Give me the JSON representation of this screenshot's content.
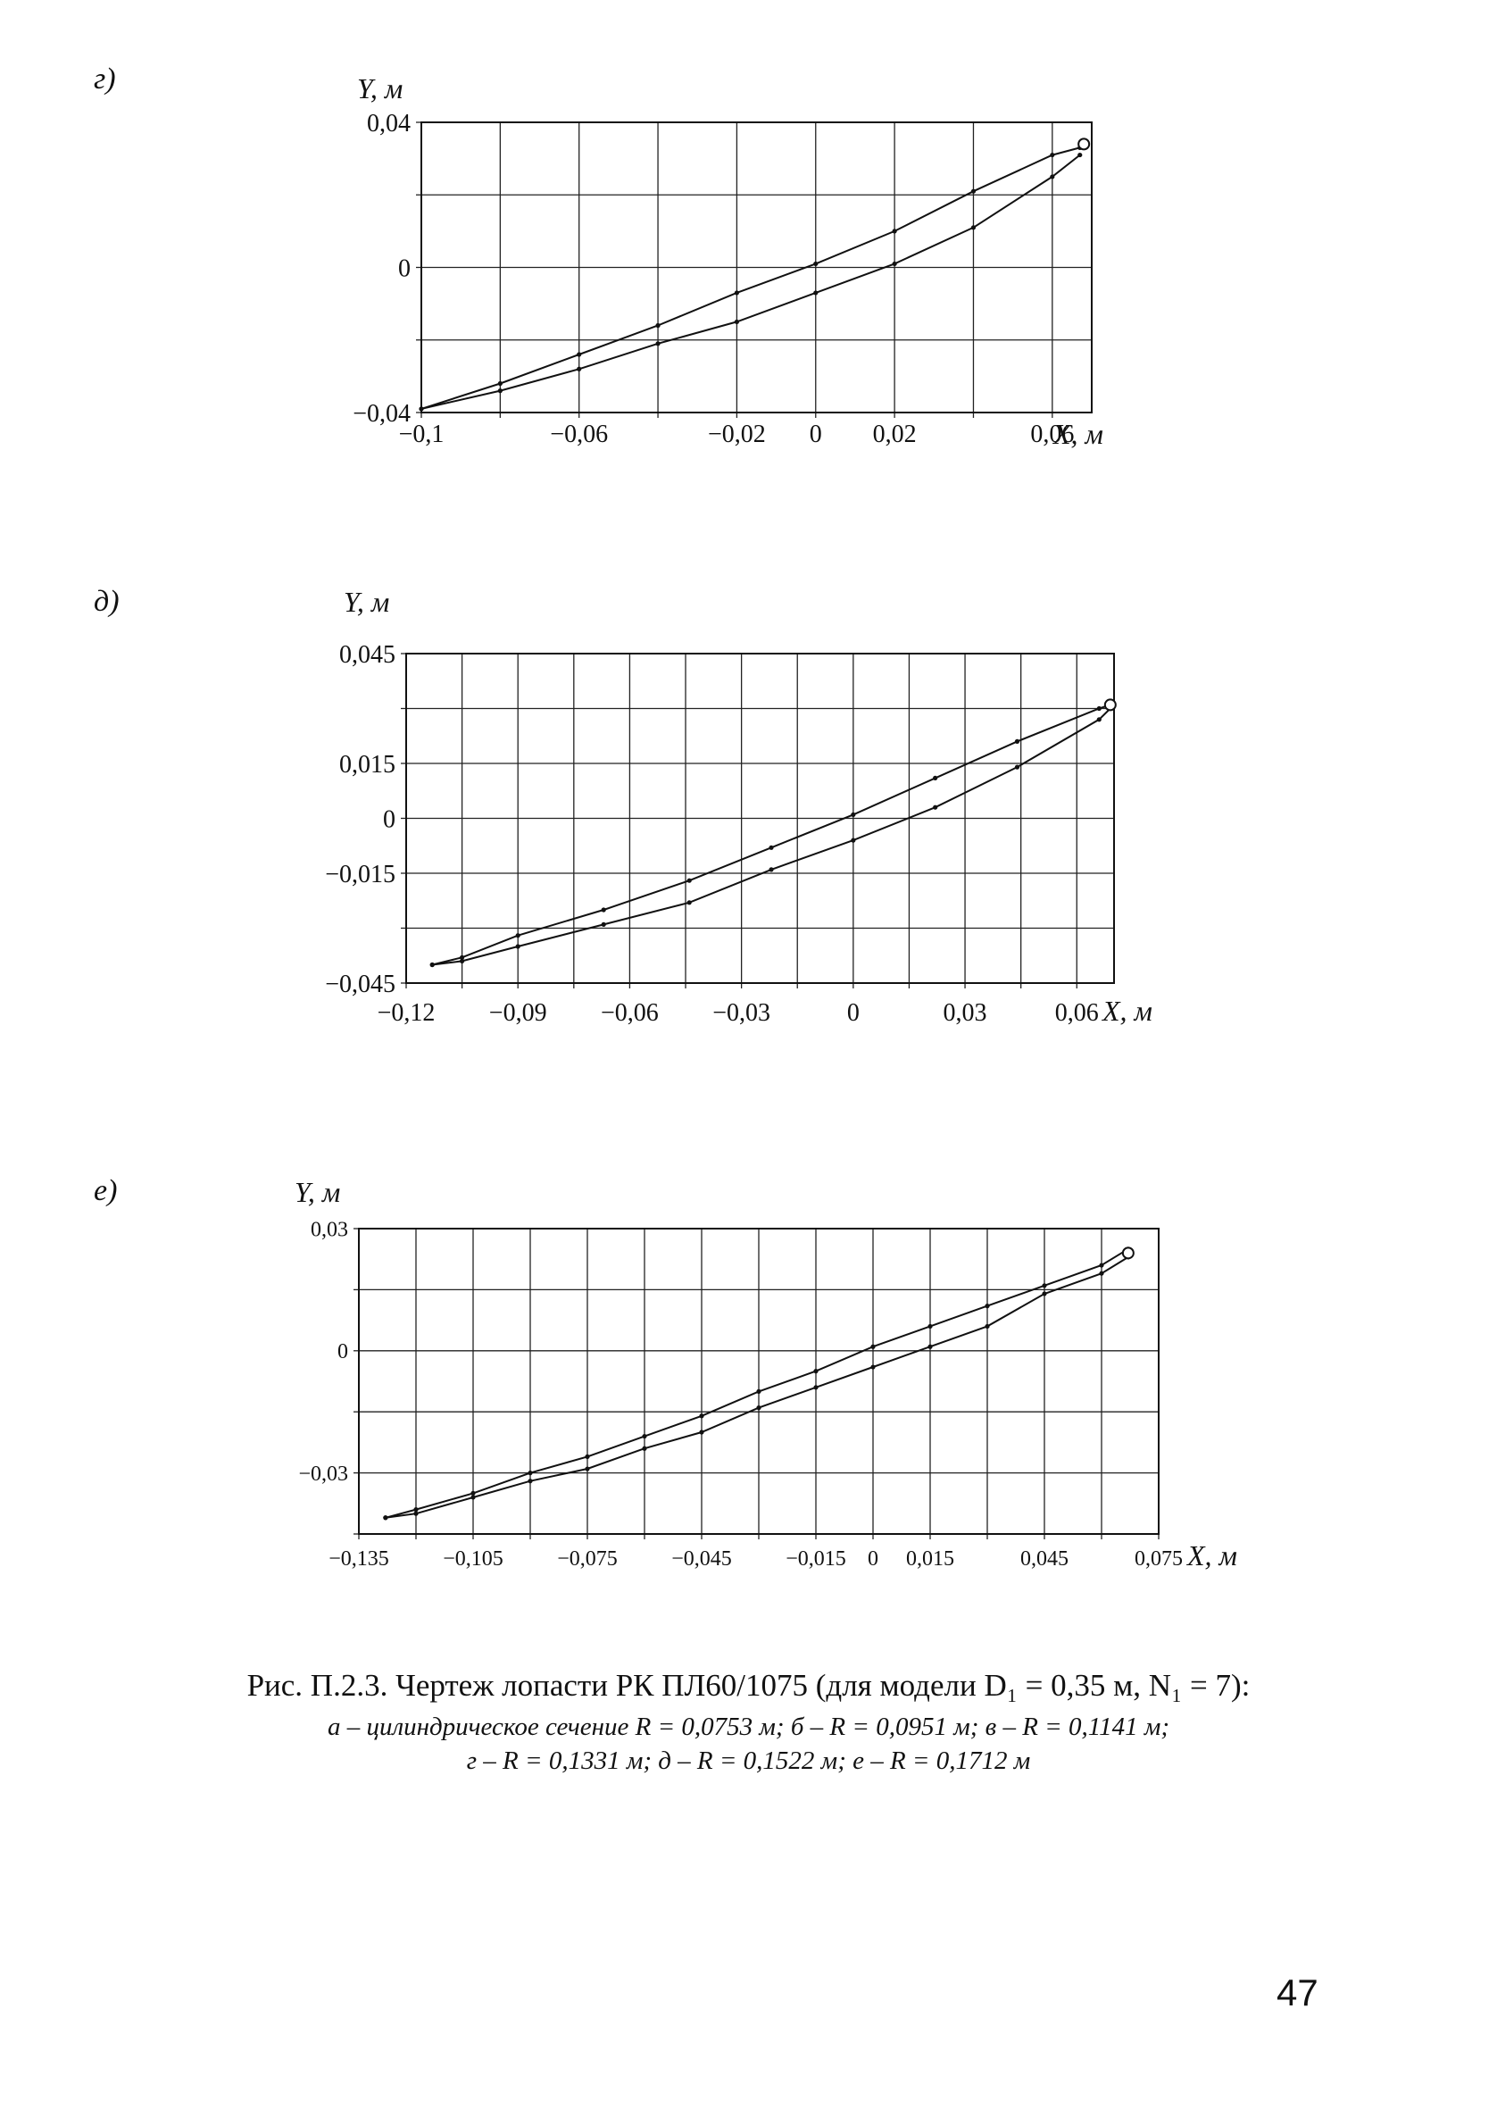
{
  "panels": [
    {
      "label": "г)"
    },
    {
      "label": "д)"
    },
    {
      "label": "е)"
    }
  ],
  "chart_data": [
    {
      "type": "line",
      "ylabel": "Y, м",
      "xlabel": "X, м",
      "xlim": [
        -0.1,
        0.07
      ],
      "ylim": [
        -0.04,
        0.04
      ],
      "grid": true,
      "xticks": [
        -0.1,
        -0.08,
        -0.06,
        -0.04,
        -0.02,
        0,
        0.02,
        0.04,
        0.06
      ],
      "xtick_labels": [
        "−0,1",
        "",
        "−0,06",
        "",
        "−0,02",
        "0",
        "0,02",
        "",
        "0,06"
      ],
      "yticks": [
        -0.04,
        -0.02,
        0,
        0.02,
        0.04
      ],
      "ytick_labels": [
        "−0,04",
        "",
        "0",
        "",
        "0,04"
      ],
      "series": [
        {
          "x": [
            -0.1,
            -0.08,
            -0.06,
            -0.04,
            -0.02,
            0,
            0.02,
            0.04,
            0.06,
            0.067
          ],
          "y": [
            -0.039,
            -0.032,
            -0.024,
            -0.016,
            -0.007,
            0.001,
            0.01,
            0.021,
            0.031,
            0.033
          ]
        },
        {
          "x": [
            -0.1,
            -0.08,
            -0.06,
            -0.04,
            -0.02,
            0,
            0.02,
            0.04,
            0.06,
            0.067
          ],
          "y": [
            -0.039,
            -0.034,
            -0.028,
            -0.021,
            -0.015,
            -0.007,
            0.001,
            0.011,
            0.025,
            0.031
          ]
        }
      ],
      "end_marker": {
        "x": 0.068,
        "y": 0.034
      }
    },
    {
      "type": "line",
      "ylabel": "Y, м",
      "xlabel": "X, м",
      "xlim": [
        -0.12,
        0.07
      ],
      "ylim": [
        -0.045,
        0.045
      ],
      "grid": true,
      "xticks": [
        -0.12,
        -0.105,
        -0.09,
        -0.075,
        -0.06,
        -0.045,
        -0.03,
        -0.015,
        0,
        0.015,
        0.03,
        0.045,
        0.06
      ],
      "xtick_labels": [
        "−0,12",
        "",
        "−0,09",
        "",
        "−0,06",
        "",
        "−0,03",
        "",
        "0",
        "",
        "0,03",
        "",
        "0,06"
      ],
      "yticks": [
        -0.045,
        -0.03,
        -0.015,
        0,
        0.015,
        0.03,
        0.045
      ],
      "ytick_labels": [
        "−0,045",
        "",
        "−0,015",
        "0",
        "0,015",
        "",
        "0,045"
      ],
      "series": [
        {
          "x": [
            -0.113,
            -0.105,
            -0.09,
            -0.067,
            -0.044,
            -0.022,
            0,
            0.022,
            0.044,
            0.066,
            0.069
          ],
          "y": [
            -0.04,
            -0.038,
            -0.032,
            -0.025,
            -0.017,
            -0.008,
            0.001,
            0.011,
            0.021,
            0.03,
            0.031
          ]
        },
        {
          "x": [
            -0.113,
            -0.105,
            -0.09,
            -0.067,
            -0.044,
            -0.022,
            0,
            0.022,
            0.044,
            0.066,
            0.069
          ],
          "y": [
            -0.04,
            -0.039,
            -0.035,
            -0.029,
            -0.023,
            -0.014,
            -0.006,
            0.003,
            0.014,
            0.027,
            0.03
          ]
        }
      ],
      "end_marker": {
        "x": 0.069,
        "y": 0.031
      }
    },
    {
      "type": "line",
      "ylabel": "Y, м",
      "xlabel": "X, м",
      "xlim": [
        -0.135,
        0.075
      ],
      "ylim": [
        -0.045,
        0.03
      ],
      "grid": true,
      "xticks": [
        -0.135,
        -0.12,
        -0.105,
        -0.09,
        -0.075,
        -0.06,
        -0.045,
        -0.03,
        -0.015,
        0,
        0.015,
        0.03,
        0.045,
        0.06,
        0.075
      ],
      "xtick_labels": [
        "−0,135",
        "",
        "−0,105",
        "",
        "−0,075",
        "",
        "−0,045",
        "",
        "−0,015",
        "0",
        "0,015",
        "",
        "0,045",
        "",
        "0,075"
      ],
      "yticks": [
        -0.045,
        -0.03,
        -0.015,
        0,
        0.015,
        0.03
      ],
      "ytick_labels": [
        "",
        "−0,03",
        "",
        "0",
        "",
        "0,03"
      ],
      "series": [
        {
          "x": [
            -0.128,
            -0.12,
            -0.105,
            -0.09,
            -0.075,
            -0.06,
            -0.045,
            -0.03,
            -0.015,
            0,
            0.015,
            0.03,
            0.045,
            0.06,
            0.067
          ],
          "y": [
            -0.041,
            -0.039,
            -0.035,
            -0.03,
            -0.026,
            -0.021,
            -0.016,
            -0.01,
            -0.005,
            0.001,
            0.006,
            0.011,
            0.016,
            0.021,
            0.025
          ]
        },
        {
          "x": [
            -0.128,
            -0.12,
            -0.105,
            -0.09,
            -0.075,
            -0.06,
            -0.045,
            -0.03,
            -0.015,
            0,
            0.015,
            0.03,
            0.045,
            0.06,
            0.067
          ],
          "y": [
            -0.041,
            -0.04,
            -0.036,
            -0.032,
            -0.029,
            -0.024,
            -0.02,
            -0.014,
            -0.009,
            -0.004,
            0.001,
            0.006,
            0.014,
            0.019,
            0.023
          ]
        }
      ],
      "end_marker": {
        "x": 0.067,
        "y": 0.024
      }
    }
  ],
  "caption": {
    "title": "Рис. П.2.3. Чертеж лопасти РК ПЛ60/1075 (для модели D₁ = 0,35 м, N₁ = 7):",
    "line1": "а – цилиндрическое сечение R = 0,0753 м; б – R = 0,0951 м; в – R = 0,1141 м;",
    "line2": "г – R = 0,1331 м; д – R = 0,1522 м; е – R = 0,1712 м"
  },
  "page_number": "47"
}
